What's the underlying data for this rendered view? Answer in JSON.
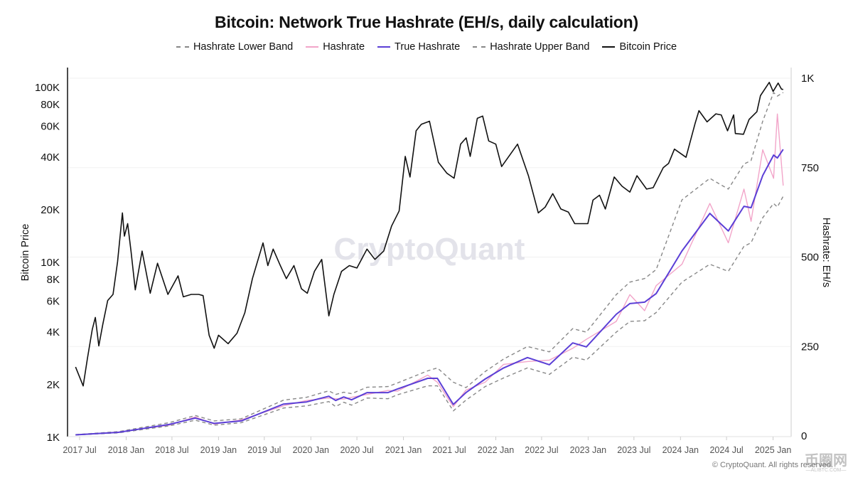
{
  "chart_data": {
    "type": "line",
    "title": "Bitcoin: Network True Hashrate (EH/s, daily calculation)",
    "legend": [
      "Hashrate Lower Band",
      "Hashrate",
      "True Hashrate",
      "Hashrate Upper Band",
      "Bitcoin Price"
    ],
    "legend_position": "top",
    "ylabel_left": "Bitcoin Price",
    "ylabel_right": "Hashrate: EH/s",
    "y_left_scale": "log",
    "y_left_range": [
      1000,
      120000
    ],
    "y_right_range": [
      0,
      1000
    ],
    "grid": "horizontal",
    "y_left_ticks": [
      {
        "value": 1000,
        "label": "1K"
      },
      {
        "value": 2000,
        "label": "2K"
      },
      {
        "value": 4000,
        "label": "4K"
      },
      {
        "value": 6000,
        "label": "6K"
      },
      {
        "value": 8000,
        "label": "8K"
      },
      {
        "value": 10000,
        "label": "10K"
      },
      {
        "value": 20000,
        "label": "20K"
      },
      {
        "value": 40000,
        "label": "40K"
      },
      {
        "value": 60000,
        "label": "60K"
      },
      {
        "value": 80000,
        "label": "80K"
      },
      {
        "value": 100000,
        "label": "100K"
      }
    ],
    "y_right_ticks": [
      {
        "value": 0,
        "label": "0"
      },
      {
        "value": 250,
        "label": "250"
      },
      {
        "value": 500,
        "label": "500"
      },
      {
        "value": 750,
        "label": "750"
      },
      {
        "value": 1000,
        "label": "1K"
      }
    ],
    "x_ticks": [
      {
        "date": "2017-07-01",
        "label": "2017 Jul"
      },
      {
        "date": "2018-01-01",
        "label": "2018 Jan"
      },
      {
        "date": "2018-07-01",
        "label": "2018 Jul"
      },
      {
        "date": "2019-01-01",
        "label": "2019 Jan"
      },
      {
        "date": "2019-07-01",
        "label": "2019 Jul"
      },
      {
        "date": "2020-01-01",
        "label": "2020 Jan"
      },
      {
        "date": "2020-07-01",
        "label": "2020 Jul"
      },
      {
        "date": "2021-01-01",
        "label": "2021 Jan"
      },
      {
        "date": "2021-07-01",
        "label": "2021 Jul"
      },
      {
        "date": "2022-01-01",
        "label": "2022 Jan"
      },
      {
        "date": "2022-07-01",
        "label": "2022 Jul"
      },
      {
        "date": "2023-01-01",
        "label": "2023 Jan"
      },
      {
        "date": "2023-07-01",
        "label": "2023 Jul"
      },
      {
        "date": "2024-01-01",
        "label": "2024 Jan"
      },
      {
        "date": "2024-07-01",
        "label": "2024 Jul"
      },
      {
        "date": "2025-01-01",
        "label": "2025 Jan"
      }
    ],
    "price": {
      "name": "Bitcoin Price",
      "color": "#111111",
      "axis": "left",
      "x": [
        "2017-06-15",
        "2017-07-15",
        "2017-08-01",
        "2017-08-20",
        "2017-09-01",
        "2017-09-15",
        "2017-10-01",
        "2017-10-20",
        "2017-11-10",
        "2017-11-28",
        "2017-12-17",
        "2017-12-25",
        "2018-01-07",
        "2018-01-20",
        "2018-02-06",
        "2018-03-05",
        "2018-04-06",
        "2018-05-05",
        "2018-06-15",
        "2018-07-25",
        "2018-08-15",
        "2018-09-15",
        "2018-10-15",
        "2018-11-01",
        "2018-11-25",
        "2018-12-15",
        "2019-01-01",
        "2019-02-08",
        "2019-03-15",
        "2019-04-15",
        "2019-05-15",
        "2019-06-26",
        "2019-07-15",
        "2019-08-05",
        "2019-09-01",
        "2019-09-26",
        "2019-10-26",
        "2019-11-25",
        "2019-12-18",
        "2020-01-15",
        "2020-02-13",
        "2020-03-12",
        "2020-04-01",
        "2020-05-01",
        "2020-06-01",
        "2020-07-01",
        "2020-08-10",
        "2020-09-10",
        "2020-10-15",
        "2020-11-15",
        "2020-12-15",
        "2021-01-08",
        "2021-01-27",
        "2021-02-20",
        "2021-03-13",
        "2021-04-14",
        "2021-05-19",
        "2021-06-22",
        "2021-07-20",
        "2021-08-15",
        "2021-09-06",
        "2021-09-22",
        "2021-10-20",
        "2021-11-10",
        "2021-12-04",
        "2022-01-01",
        "2022-01-24",
        "2022-03-28",
        "2022-05-10",
        "2022-06-18",
        "2022-07-15",
        "2022-08-14",
        "2022-09-15",
        "2022-10-15",
        "2022-11-09",
        "2022-12-31",
        "2023-01-20",
        "2023-02-15",
        "2023-03-10",
        "2023-04-14",
        "2023-05-15",
        "2023-06-15",
        "2023-07-13",
        "2023-08-20",
        "2023-09-15",
        "2023-10-25",
        "2023-11-15",
        "2023-12-08",
        "2024-01-23",
        "2024-02-28",
        "2024-03-14",
        "2024-04-15",
        "2024-05-20",
        "2024-06-10",
        "2024-07-05",
        "2024-07-29",
        "2024-08-05",
        "2024-09-06",
        "2024-09-28",
        "2024-10-29",
        "2024-11-12",
        "2024-12-17",
        "2025-01-01",
        "2025-01-21",
        "2025-02-03",
        "2025-02-10"
      ],
      "y": [
        2500,
        1950,
        2800,
        4100,
        4800,
        3300,
        4400,
        6000,
        6500,
        10000,
        19000,
        14000,
        16500,
        11500,
        6900,
        11500,
        6600,
        9800,
        6500,
        8300,
        6300,
        6500,
        6500,
        6400,
        3800,
        3200,
        3800,
        3400,
        3900,
        5100,
        8000,
        12800,
        9500,
        11800,
        9600,
        8000,
        9500,
        7000,
        6600,
        8800,
        10300,
        4900,
        6500,
        8800,
        9500,
        9200,
        11800,
        10300,
        11500,
        16000,
        19500,
        40000,
        30500,
        56000,
        61000,
        63500,
        37000,
        32000,
        30000,
        47000,
        51000,
        40000,
        66000,
        68000,
        49000,
        47000,
        35000,
        47000,
        31000,
        19000,
        20500,
        24500,
        20000,
        19200,
        16500,
        16500,
        22500,
        24000,
        20000,
        30500,
        27000,
        25000,
        31000,
        26000,
        26500,
        34500,
        36500,
        44000,
        39500,
        62000,
        73000,
        63000,
        70000,
        69000,
        56000,
        69000,
        54000,
        53500,
        65000,
        72000,
        89000,
        106000,
        94000,
        105000,
        97000,
        96500
      ]
    },
    "hashrate_x": [
      "2017-06-15",
      "2017-12-01",
      "2018-06-20",
      "2018-10-01",
      "2018-12-15",
      "2019-04-01",
      "2019-09-15",
      "2019-12-15",
      "2020-03-12",
      "2020-04-08",
      "2020-05-10",
      "2020-06-10",
      "2020-08-10",
      "2020-11-01",
      "2020-12-08",
      "2021-04-07",
      "2021-05-15",
      "2021-07-17",
      "2021-09-05",
      "2021-11-20",
      "2022-02-01",
      "2022-05-06",
      "2022-08-01",
      "2022-11-01",
      "2022-12-25",
      "2023-04-22",
      "2023-06-15",
      "2023-08-12",
      "2023-09-27",
      "2024-01-07",
      "2024-04-26",
      "2024-07-08",
      "2024-09-08",
      "2024-10-06",
      "2024-11-21",
      "2025-01-03",
      "2025-01-18",
      "2025-02-10"
    ],
    "series": [
      {
        "name": "Hashrate Lower Band",
        "color": "#888888",
        "dashed": true,
        "axis": "right",
        "values": [
          2.5,
          8.5,
          28,
          44,
          30,
          37,
          78,
          84,
          96,
          82,
          94,
          86,
          106,
          104,
          115,
          140,
          140,
          70,
          100,
          138,
          162,
          190,
          172,
          220,
          212,
          290,
          320,
          322,
          345,
          430,
          480,
          460,
          530,
          540,
          610,
          650,
          640,
          670
        ]
      },
      {
        "name": "Hashrate",
        "color": "#f2a5c9",
        "dashed": false,
        "axis": "right",
        "values": [
          3,
          11,
          30,
          53,
          33,
          45,
          84,
          99,
          106,
          104,
          103,
          108,
          116,
          127,
          125,
          170,
          150,
          82,
          128,
          150,
          200,
          208,
          212,
          245,
          270,
          320,
          395,
          350,
          420,
          480,
          650,
          540,
          690,
          600,
          800,
          720,
          900,
          700
        ]
      },
      {
        "name": "True Hashrate",
        "color": "#5b3fd6",
        "dashed": false,
        "axis": "right",
        "values": [
          3,
          10,
          32,
          50,
          35,
          42,
          89,
          95,
          111,
          99,
          109,
          101,
          121,
          121,
          131,
          161,
          161,
          88,
          121,
          159,
          190,
          219,
          199,
          260,
          249,
          340,
          370,
          374,
          398,
          517,
          622,
          573,
          642,
          638,
          728,
          785,
          777,
          801
        ]
      },
      {
        "name": "Hashrate Upper Band",
        "color": "#888888",
        "dashed": true,
        "axis": "right",
        "values": [
          3.5,
          12,
          37,
          57,
          42,
          48,
          100,
          108,
          126,
          116,
          122,
          118,
          136,
          138,
          148,
          182,
          190,
          150,
          135,
          180,
          215,
          250,
          235,
          300,
          290,
          395,
          430,
          440,
          465,
          660,
          720,
          690,
          760,
          770,
          880,
          960,
          950,
          960
        ]
      }
    ]
  },
  "watermark": "CryptoQuant",
  "copyright": "© CryptoQuant. All rights reserved.",
  "corner_watermark": {
    "main": "币圈网",
    "sub": "—ALIBTC.COM—"
  }
}
